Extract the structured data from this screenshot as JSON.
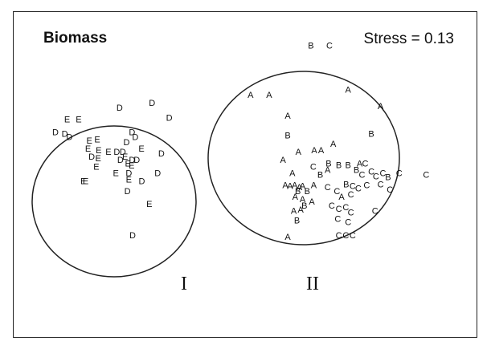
{
  "chart_data": {
    "type": "scatter",
    "title": "Biomass",
    "annotation": "Stress = 0.13",
    "xlabel": "",
    "ylabel": "",
    "axes_shown": false,
    "grid": false,
    "groups": [
      {
        "label": "I",
        "ellipse": {
          "cx": 0.29,
          "cy": 0.58,
          "rx": 0.213,
          "ry": 0.264
        }
      },
      {
        "label": "II",
        "ellipse": {
          "cx": 0.677,
          "cy": 0.43,
          "rx": 0.255,
          "ry": 0.324
        }
      }
    ],
    "points": [
      {
        "label": "B",
        "x": 0.64,
        "y": 0.895
      },
      {
        "label": "C",
        "x": 0.68,
        "y": 0.895
      },
      {
        "label": "A",
        "x": 0.72,
        "y": 0.76
      },
      {
        "label": "A",
        "x": 0.51,
        "y": 0.745
      },
      {
        "label": "A",
        "x": 0.55,
        "y": 0.745
      },
      {
        "label": "A",
        "x": 0.79,
        "y": 0.71
      },
      {
        "label": "A",
        "x": 0.59,
        "y": 0.68
      },
      {
        "label": "B",
        "x": 0.59,
        "y": 0.62
      },
      {
        "label": "B",
        "x": 0.77,
        "y": 0.625
      },
      {
        "label": "A",
        "x": 0.613,
        "y": 0.57
      },
      {
        "label": "A",
        "x": 0.647,
        "y": 0.575
      },
      {
        "label": "A",
        "x": 0.662,
        "y": 0.575
      },
      {
        "label": "A",
        "x": 0.688,
        "y": 0.595
      },
      {
        "label": "A",
        "x": 0.58,
        "y": 0.545
      },
      {
        "label": "C",
        "x": 0.645,
        "y": 0.525
      },
      {
        "label": "B",
        "x": 0.678,
        "y": 0.535
      },
      {
        "label": "B",
        "x": 0.7,
        "y": 0.53
      },
      {
        "label": "B",
        "x": 0.72,
        "y": 0.53
      },
      {
        "label": "A",
        "x": 0.745,
        "y": 0.535
      },
      {
        "label": "C",
        "x": 0.757,
        "y": 0.535
      },
      {
        "label": "B",
        "x": 0.738,
        "y": 0.515
      },
      {
        "label": "A",
        "x": 0.676,
        "y": 0.515
      },
      {
        "label": "B",
        "x": 0.66,
        "y": 0.5
      },
      {
        "label": "A",
        "x": 0.6,
        "y": 0.505
      },
      {
        "label": "C",
        "x": 0.75,
        "y": 0.5
      },
      {
        "label": "C",
        "x": 0.77,
        "y": 0.51
      },
      {
        "label": "C",
        "x": 0.795,
        "y": 0.505
      },
      {
        "label": "C",
        "x": 0.83,
        "y": 0.505
      },
      {
        "label": "C",
        "x": 0.888,
        "y": 0.5
      },
      {
        "label": "C",
        "x": 0.78,
        "y": 0.495
      },
      {
        "label": "B",
        "x": 0.806,
        "y": 0.493
      },
      {
        "label": "A",
        "x": 0.585,
        "y": 0.468
      },
      {
        "label": "A",
        "x": 0.595,
        "y": 0.465
      },
      {
        "label": "A",
        "x": 0.605,
        "y": 0.468
      },
      {
        "label": "A",
        "x": 0.615,
        "y": 0.462
      },
      {
        "label": "A",
        "x": 0.622,
        "y": 0.465
      },
      {
        "label": "B",
        "x": 0.612,
        "y": 0.45
      },
      {
        "label": "B",
        "x": 0.632,
        "y": 0.45
      },
      {
        "label": "A",
        "x": 0.646,
        "y": 0.468
      },
      {
        "label": "C",
        "x": 0.676,
        "y": 0.462
      },
      {
        "label": "C",
        "x": 0.696,
        "y": 0.45
      },
      {
        "label": "B",
        "x": 0.716,
        "y": 0.47
      },
      {
        "label": "C",
        "x": 0.73,
        "y": 0.466
      },
      {
        "label": "C",
        "x": 0.742,
        "y": 0.458
      },
      {
        "label": "C",
        "x": 0.76,
        "y": 0.468
      },
      {
        "label": "C",
        "x": 0.79,
        "y": 0.47
      },
      {
        "label": "C",
        "x": 0.81,
        "y": 0.455
      },
      {
        "label": "C",
        "x": 0.726,
        "y": 0.44
      },
      {
        "label": "A",
        "x": 0.706,
        "y": 0.433
      },
      {
        "label": "A",
        "x": 0.606,
        "y": 0.432
      },
      {
        "label": "A",
        "x": 0.622,
        "y": 0.425
      },
      {
        "label": "A",
        "x": 0.642,
        "y": 0.418
      },
      {
        "label": "B",
        "x": 0.626,
        "y": 0.405
      },
      {
        "label": "A",
        "x": 0.603,
        "y": 0.39
      },
      {
        "label": "A",
        "x": 0.618,
        "y": 0.393
      },
      {
        "label": "C",
        "x": 0.685,
        "y": 0.405
      },
      {
        "label": "C",
        "x": 0.7,
        "y": 0.395
      },
      {
        "label": "C",
        "x": 0.715,
        "y": 0.4
      },
      {
        "label": "C",
        "x": 0.726,
        "y": 0.385
      },
      {
        "label": "C",
        "x": 0.778,
        "y": 0.39
      },
      {
        "label": "B",
        "x": 0.61,
        "y": 0.36
      },
      {
        "label": "C",
        "x": 0.698,
        "y": 0.365
      },
      {
        "label": "C",
        "x": 0.72,
        "y": 0.355
      },
      {
        "label": "A",
        "x": 0.59,
        "y": 0.31
      },
      {
        "label": "C",
        "x": 0.7,
        "y": 0.315
      },
      {
        "label": "C",
        "x": 0.715,
        "y": 0.315
      },
      {
        "label": "C",
        "x": 0.73,
        "y": 0.315
      },
      {
        "label": "E",
        "x": 0.115,
        "y": 0.67
      },
      {
        "label": "E",
        "x": 0.14,
        "y": 0.67
      },
      {
        "label": "D",
        "x": 0.228,
        "y": 0.705
      },
      {
        "label": "D",
        "x": 0.298,
        "y": 0.72
      },
      {
        "label": "D",
        "x": 0.335,
        "y": 0.675
      },
      {
        "label": "D",
        "x": 0.09,
        "y": 0.63
      },
      {
        "label": "D",
        "x": 0.11,
        "y": 0.625
      },
      {
        "label": "D",
        "x": 0.12,
        "y": 0.615
      },
      {
        "label": "E",
        "x": 0.163,
        "y": 0.605
      },
      {
        "label": "E",
        "x": 0.18,
        "y": 0.608
      },
      {
        "label": "D",
        "x": 0.255,
        "y": 0.63
      },
      {
        "label": "D",
        "x": 0.262,
        "y": 0.615
      },
      {
        "label": "D",
        "x": 0.243,
        "y": 0.6
      },
      {
        "label": "E",
        "x": 0.16,
        "y": 0.58
      },
      {
        "label": "E",
        "x": 0.183,
        "y": 0.575
      },
      {
        "label": "E",
        "x": 0.204,
        "y": 0.57
      },
      {
        "label": "D",
        "x": 0.222,
        "y": 0.57
      },
      {
        "label": "D",
        "x": 0.235,
        "y": 0.57
      },
      {
        "label": "E",
        "x": 0.24,
        "y": 0.555
      },
      {
        "label": "D",
        "x": 0.23,
        "y": 0.545
      },
      {
        "label": "D",
        "x": 0.255,
        "y": 0.545
      },
      {
        "label": "D",
        "x": 0.265,
        "y": 0.545
      },
      {
        "label": "E",
        "x": 0.275,
        "y": 0.58
      },
      {
        "label": "D",
        "x": 0.168,
        "y": 0.555
      },
      {
        "label": "E",
        "x": 0.182,
        "y": 0.55
      },
      {
        "label": "D",
        "x": 0.318,
        "y": 0.565
      },
      {
        "label": "E",
        "x": 0.246,
        "y": 0.535
      },
      {
        "label": "E",
        "x": 0.254,
        "y": 0.528
      },
      {
        "label": "E",
        "x": 0.178,
        "y": 0.525
      },
      {
        "label": "E",
        "x": 0.22,
        "y": 0.505
      },
      {
        "label": "D",
        "x": 0.248,
        "y": 0.505
      },
      {
        "label": "D",
        "x": 0.31,
        "y": 0.505
      },
      {
        "label": "E",
        "x": 0.155,
        "y": 0.48
      },
      {
        "label": "E",
        "x": 0.248,
        "y": 0.485
      },
      {
        "label": "D",
        "x": 0.276,
        "y": 0.48
      },
      {
        "label": "D",
        "x": 0.245,
        "y": 0.45
      },
      {
        "label": "E",
        "x": 0.15,
        "y": 0.48
      },
      {
        "label": "E",
        "x": 0.292,
        "y": 0.41
      },
      {
        "label": "D",
        "x": 0.256,
        "y": 0.315
      }
    ]
  }
}
